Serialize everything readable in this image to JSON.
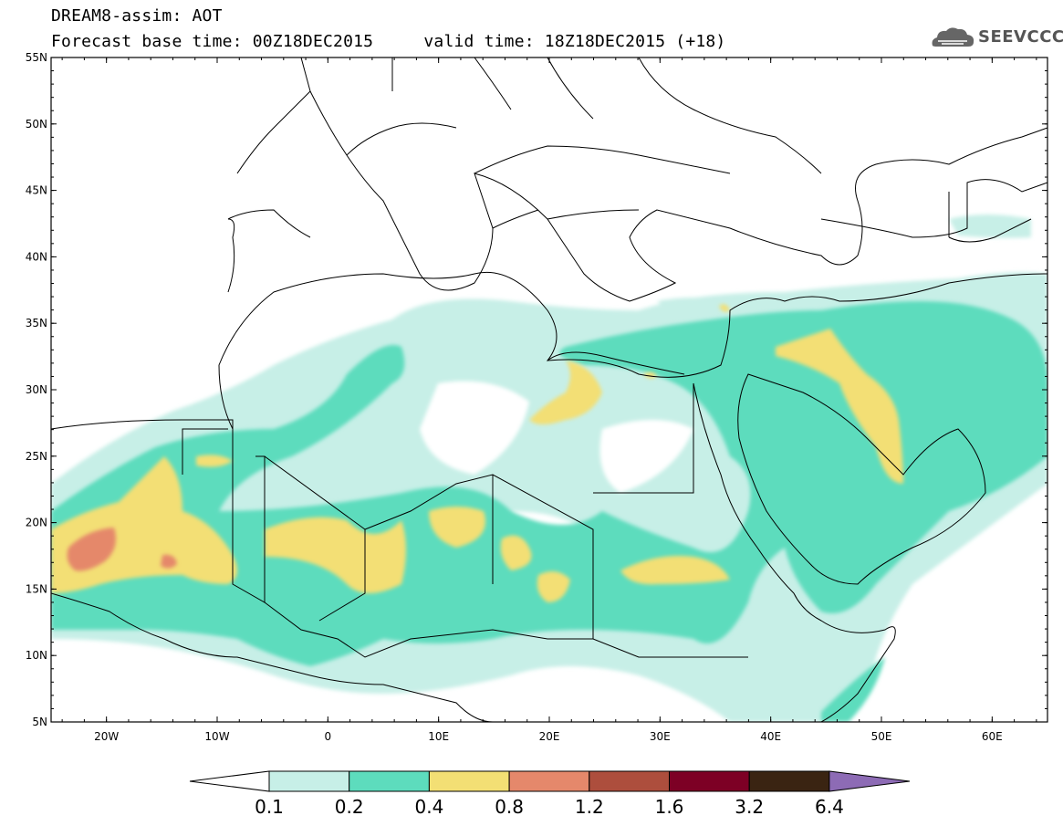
{
  "header": {
    "title": "DREAM8-assim: AOT",
    "subtitle": "Forecast base time: 00Z18DEC2015     valid time: 18Z18DEC2015 (+18)",
    "logo_text": "SEEVCCC"
  },
  "axes": {
    "lon_labels": [
      "20W",
      "10W",
      "0",
      "10E",
      "20E",
      "30E",
      "40E",
      "50E",
      "60E"
    ],
    "lat_labels": [
      "55N",
      "50N",
      "45N",
      "40N",
      "35N",
      "30N",
      "25N",
      "20N",
      "15N",
      "10N",
      "5N"
    ]
  },
  "colorbar": {
    "labels": [
      "0.1",
      "0.2",
      "0.4",
      "0.8",
      "1.2",
      "1.6",
      "3.2",
      "6.4"
    ],
    "colors": [
      "#ffffff",
      "#c7efe7",
      "#5ddcbd",
      "#f3df74",
      "#e5886b",
      "#ad4e3d",
      "#7d0025",
      "#3a2412",
      "#8d6bb5"
    ]
  }
}
